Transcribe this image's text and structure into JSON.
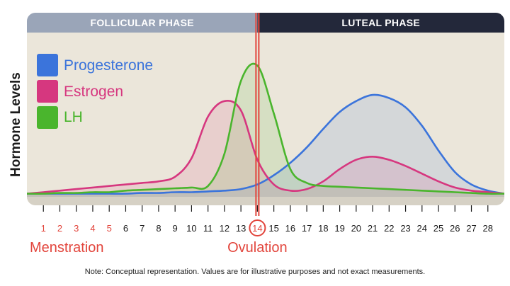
{
  "chart_data": {
    "type": "line",
    "title": "",
    "xlabel": "",
    "ylabel": "Hormone Levels",
    "x": [
      1,
      2,
      3,
      4,
      5,
      6,
      7,
      8,
      9,
      10,
      11,
      12,
      13,
      14,
      15,
      16,
      17,
      18,
      19,
      20,
      21,
      22,
      23,
      24,
      25,
      26,
      27,
      28
    ],
    "x_ticks": [
      "1",
      "2",
      "3",
      "4",
      "5",
      "6",
      "7",
      "8",
      "9",
      "10",
      "11",
      "12",
      "13",
      "14",
      "15",
      "16",
      "17",
      "18",
      "19",
      "20",
      "21",
      "22",
      "23",
      "24",
      "25",
      "26",
      "27",
      "28"
    ],
    "highlighted_ticks": [
      "1",
      "2",
      "3",
      "4",
      "5"
    ],
    "circled_tick": "14",
    "xlim": [
      0,
      29
    ],
    "ylim": [
      0,
      100
    ],
    "grid": false,
    "legend_placement": "top-left",
    "phases": [
      {
        "label": "FOLLICULAR PHASE",
        "from": 0,
        "to": 14
      },
      {
        "label": "LUTEAL PHASE",
        "from": 14,
        "to": 29
      }
    ],
    "series": [
      {
        "name": "Progesterone",
        "x": [
          0,
          1,
          2,
          3,
          4,
          5,
          6,
          7,
          8,
          9,
          10,
          11,
          12,
          13,
          14,
          15,
          16,
          17,
          18,
          19,
          20,
          21,
          22,
          23,
          24,
          25,
          26,
          27,
          28,
          29
        ],
        "values": [
          2,
          2,
          2,
          2,
          2,
          2,
          2,
          2.5,
          2.5,
          3,
          3,
          3.5,
          4,
          5,
          8,
          14,
          22,
          32,
          44,
          55,
          62,
          66,
          64,
          58,
          46,
          30,
          16,
          8,
          4,
          2
        ]
      },
      {
        "name": "Estrogen",
        "x": [
          0,
          1,
          2,
          3,
          4,
          5,
          6,
          7,
          8,
          9,
          10,
          11,
          12,
          13,
          14,
          15,
          16,
          17,
          18,
          19,
          20,
          21,
          22,
          23,
          24,
          25,
          26,
          27,
          28,
          29
        ],
        "values": [
          2,
          3,
          4,
          5,
          6,
          7,
          8,
          9,
          10,
          13,
          25,
          52,
          62,
          56,
          24,
          8,
          4,
          5,
          10,
          18,
          24,
          26,
          24,
          20,
          15,
          10,
          6,
          4,
          3,
          2
        ]
      },
      {
        "name": "LH",
        "x": [
          0,
          1,
          2,
          3,
          4,
          5,
          6,
          7,
          8,
          9,
          10,
          11,
          12,
          13,
          14,
          15,
          16,
          17,
          18,
          19,
          20,
          21,
          22,
          23,
          24,
          25,
          26,
          27,
          28,
          29
        ],
        "values": [
          2,
          2,
          2.5,
          2.5,
          3,
          3,
          4,
          4.5,
          5,
          5.5,
          6,
          7,
          28,
          75,
          85,
          54,
          18,
          9,
          7,
          6.5,
          6,
          5.5,
          5,
          4.5,
          4,
          3.5,
          3,
          2.5,
          2,
          2
        ]
      }
    ],
    "markers": [
      {
        "label": "Menstration",
        "at": 5
      },
      {
        "label": "Ovulation",
        "at": 14
      }
    ]
  },
  "colors": {
    "progesterone": "#3b74db",
    "estrogen": "#d6377f",
    "lh": "#4ab52d",
    "ovulation_line": "#e2453c",
    "follicular_header": "#9aa5b8",
    "luteal_header": "#23283a",
    "plot_bg": "#ebe6da",
    "tick_highlight": "#e2453c"
  },
  "note": "Note: Conceptual representation. Values are for illustrative purposes and not exact measurements."
}
